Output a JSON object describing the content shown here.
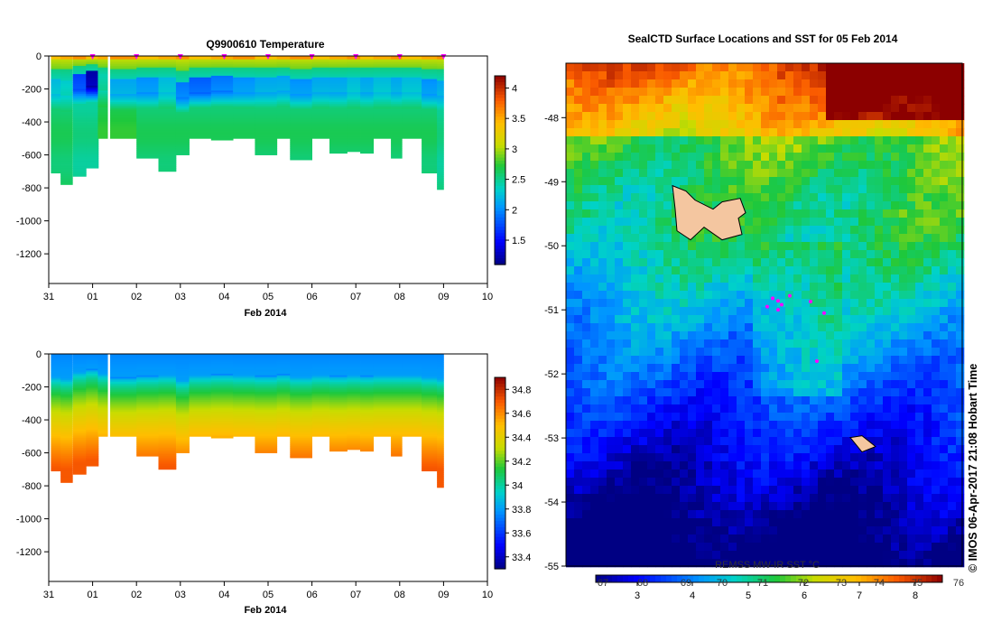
{
  "panel_top": {
    "title": "Q9900610  Temperature",
    "xlabel": "Feb 2014",
    "x_ticks": [
      "31",
      "01",
      "02",
      "03",
      "04",
      "05",
      "06",
      "07",
      "08",
      "09",
      "10"
    ],
    "y_ticks": [
      "0",
      "-200",
      "-400",
      "-600",
      "-800",
      "-1000",
      "-1200"
    ],
    "colorbar_ticks": [
      "4",
      "3.5",
      "3",
      "2.5",
      "2",
      "1.5"
    ]
  },
  "panel_bottom": {
    "xlabel": "Feb 2014",
    "x_ticks": [
      "31",
      "01",
      "02",
      "03",
      "04",
      "05",
      "06",
      "07",
      "08",
      "09",
      "10"
    ],
    "y_ticks": [
      "0",
      "-200",
      "-400",
      "-600",
      "-800",
      "-1000",
      "-1200"
    ],
    "colorbar_ticks": [
      "34.8",
      "34.6",
      "34.4",
      "34.2",
      "34",
      "33.8",
      "33.6",
      "33.4"
    ]
  },
  "map_panel": {
    "title": "SealCTD Surface Locations and SST for 05 Feb 2014",
    "y_ticks": [
      "-48",
      "-49",
      "-50",
      "-51",
      "-52",
      "-53",
      "-54",
      "-55"
    ],
    "colorbar_label": "REMSS MW-IR SST °C",
    "colorbar_ticks_celsius": [
      "3",
      "4",
      "5",
      "6",
      "7",
      "8"
    ],
    "colorbar_ticks_fahrenheit": [
      "67",
      "68",
      "69",
      "70",
      "71",
      "72",
      "73",
      "74",
      "75",
      "76"
    ],
    "credit": "© IMOS 06-Apr-2017 21:08 Hobart Time"
  },
  "colors": {
    "land": "#f4c6a0",
    "profile_marker": "#ff00ff",
    "sst_warm": "#9c0000",
    "sst_cold": "#000a8c"
  },
  "chart_data": [
    {
      "type": "heatmap",
      "title": "Q9900610  Temperature",
      "xlabel": "Feb 2014",
      "ylabel": "",
      "x_range": [
        31,
        41
      ],
      "ylim": [
        -1380,
        0
      ],
      "clim": [
        1.1,
        4.2
      ],
      "profiles": [
        {
          "t": 31.05,
          "w": 0.22,
          "depth": 705,
          "mld": 140,
          "cold_core": 2.2,
          "deep": 2.6
        },
        {
          "t": 31.27,
          "w": 0.27,
          "depth": 775,
          "mld": 150,
          "cold_core": 2.3,
          "deep": 2.6
        },
        {
          "t": 31.55,
          "w": 0.3,
          "depth": 722,
          "mld": 110,
          "cold_core": 1.7,
          "deep": 2.5
        },
        {
          "t": 31.85,
          "w": 0.28,
          "depth": 675,
          "mld": 95,
          "cold_core": 1.2,
          "deep": 2.5
        },
        {
          "t": 32.12,
          "w": 0.22,
          "depth": 500,
          "mld": 120,
          "cold_core": 2.4,
          "deep": 2.7
        },
        {
          "t": 32.4,
          "w": 0.6,
          "depth": 500,
          "mld": 145,
          "cold_core": 2.1,
          "deep": 2.7
        },
        {
          "t": 33.0,
          "w": 0.5,
          "depth": 615,
          "mld": 135,
          "cold_core": 2.0,
          "deep": 2.6
        },
        {
          "t": 33.5,
          "w": 0.4,
          "depth": 700,
          "mld": 130,
          "cold_core": 2.2,
          "deep": 2.6
        },
        {
          "t": 33.9,
          "w": 0.3,
          "depth": 600,
          "mld": 160,
          "cold_core": 1.9,
          "deep": 2.6
        },
        {
          "t": 34.2,
          "w": 0.5,
          "depth": 500,
          "mld": 130,
          "cold_core": 1.8,
          "deep": 2.6
        },
        {
          "t": 34.7,
          "w": 0.5,
          "depth": 505,
          "mld": 125,
          "cold_core": 1.9,
          "deep": 2.6
        },
        {
          "t": 35.2,
          "w": 0.5,
          "depth": 500,
          "mld": 130,
          "cold_core": 2.0,
          "deep": 2.6
        },
        {
          "t": 35.7,
          "w": 0.5,
          "depth": 595,
          "mld": 135,
          "cold_core": 2.1,
          "deep": 2.6
        },
        {
          "t": 36.2,
          "w": 0.3,
          "depth": 500,
          "mld": 125,
          "cold_core": 2.1,
          "deep": 2.6
        },
        {
          "t": 36.5,
          "w": 0.5,
          "depth": 630,
          "mld": 140,
          "cold_core": 2.0,
          "deep": 2.6
        },
        {
          "t": 37.0,
          "w": 0.4,
          "depth": 500,
          "mld": 130,
          "cold_core": 2.1,
          "deep": 2.6
        },
        {
          "t": 37.4,
          "w": 0.4,
          "depth": 590,
          "mld": 135,
          "cold_core": 2.1,
          "deep": 2.6
        },
        {
          "t": 37.8,
          "w": 0.3,
          "depth": 575,
          "mld": 130,
          "cold_core": 2.2,
          "deep": 2.6
        },
        {
          "t": 38.1,
          "w": 0.3,
          "depth": 585,
          "mld": 135,
          "cold_core": 2.1,
          "deep": 2.6
        },
        {
          "t": 38.4,
          "w": 0.4,
          "depth": 500,
          "mld": 130,
          "cold_core": 2.2,
          "deep": 2.6
        },
        {
          "t": 38.8,
          "w": 0.25,
          "depth": 620,
          "mld": 130,
          "cold_core": 2.1,
          "deep": 2.6
        },
        {
          "t": 39.05,
          "w": 0.45,
          "depth": 500,
          "mld": 130,
          "cold_core": 2.2,
          "deep": 2.6
        },
        {
          "t": 39.5,
          "w": 0.35,
          "depth": 710,
          "mld": 140,
          "cold_core": 2.0,
          "deep": 2.6
        },
        {
          "t": 39.85,
          "w": 0.15,
          "depth": 810,
          "mld": 150,
          "cold_core": 2.1,
          "deep": 2.5
        }
      ],
      "markers_t": [
        32.0,
        33.0,
        34.0,
        35.0,
        36.0,
        37.0,
        38.0,
        39.0,
        40.0
      ]
    },
    {
      "type": "heatmap",
      "title": "",
      "xlabel": "Feb 2014",
      "ylabel": "",
      "x_range": [
        31,
        41
      ],
      "ylim": [
        -1380,
        0
      ],
      "clim": [
        33.3,
        34.9
      ],
      "surface": 33.75,
      "deep": 34.7
    },
    {
      "type": "heatmap",
      "title": "SealCTD Surface Locations and SST for 05 Feb 2014",
      "xlabel": "",
      "ylabel": "",
      "ylim": [
        -55,
        -47.15
      ],
      "clim": [
        2.2,
        8.5
      ],
      "sst_cold_south": 2.8,
      "sst_warm_north": 7.2,
      "islands": [
        {
          "lat": -49.4
        },
        {
          "lat": -53.05
        }
      ],
      "profile_locations": [
        {
          "lat": -50.82
        },
        {
          "lat": -50.86
        },
        {
          "lat": -50.78
        },
        {
          "lat": -50.95
        },
        {
          "lat": -51.0
        },
        {
          "lat": -50.92
        },
        {
          "lat": -50.87
        },
        {
          "lat": -51.05
        },
        {
          "lat": -51.8
        }
      ]
    }
  ]
}
